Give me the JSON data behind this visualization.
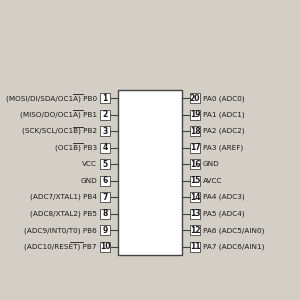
{
  "bg_color": "#d3cfc7",
  "chip_color": "#ffffff",
  "chip_border_color": "#444444",
  "text_color": "#1a1a1a",
  "pin_box_color": "#ffffff",
  "pin_box_border": "#444444",
  "left_pins": [
    {
      "num": 1,
      "label": "(MOSI/DI/SDA/OC1A) PB0",
      "overline": "OC1A"
    },
    {
      "num": 2,
      "label": "(MISO/DO/OC1A) PB1",
      "overline": "OC1A"
    },
    {
      "num": 3,
      "label": "(SCK/SCL/OC1B) PB2",
      "overline": "OC1B"
    },
    {
      "num": 4,
      "label": "(OC1B) PB3",
      "overline": "OC1B"
    },
    {
      "num": 5,
      "label": "VCC",
      "overline": ""
    },
    {
      "num": 6,
      "label": "GND",
      "overline": ""
    },
    {
      "num": 7,
      "label": "(ADC7/XTAL1) PB4",
      "overline": ""
    },
    {
      "num": 8,
      "label": "(ADC8/XTAL2) PB5",
      "overline": ""
    },
    {
      "num": 9,
      "label": "(ADC9/INT0/T0) PB6",
      "overline": ""
    },
    {
      "num": 10,
      "label": "(ADC10/RESET) PB7",
      "overline": "RESET"
    }
  ],
  "right_pins": [
    {
      "num": 20,
      "label": "PA0 (ADC0)"
    },
    {
      "num": 19,
      "label": "PA1 (ADC1)"
    },
    {
      "num": 18,
      "label": "PA2 (ADC2)"
    },
    {
      "num": 17,
      "label": "PA3 (AREF)"
    },
    {
      "num": 16,
      "label": "GND"
    },
    {
      "num": 15,
      "label": "AVCC"
    },
    {
      "num": 14,
      "label": "PA4 (ADC3)"
    },
    {
      "num": 13,
      "label": "PA5 (ADC4)"
    },
    {
      "num": 12,
      "label": "PA6 (ADC5/AIN0)"
    },
    {
      "num": 11,
      "label": "PA7 (ADC6/AIN1)"
    }
  ],
  "font_size": 5.2,
  "num_font_size": 5.5
}
